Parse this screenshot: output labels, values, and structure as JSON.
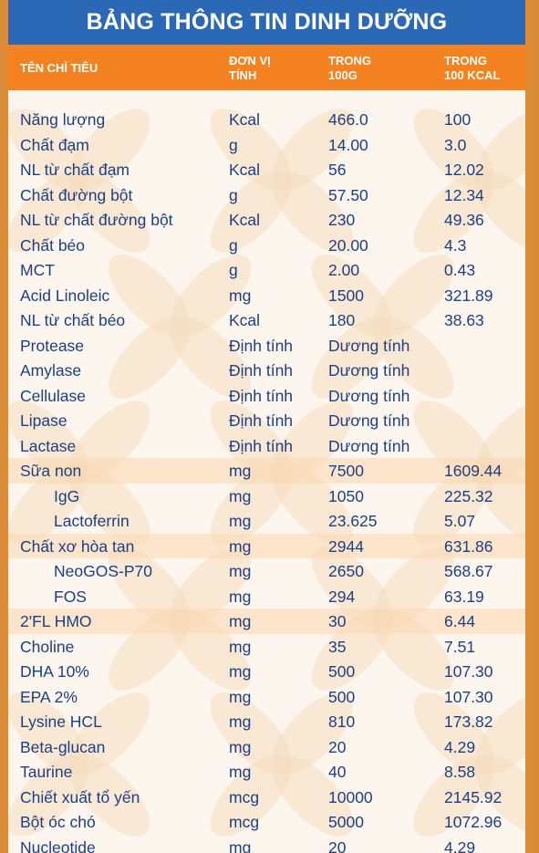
{
  "title": "BẢNG THÔNG TIN DINH DƯỠNG",
  "header": {
    "col1": "TÊN CHỈ TIÊU",
    "col2_l1": "ĐƠN VỊ",
    "col2_l2": "TÍNH",
    "col3_l1": "TRONG",
    "col3_l2": "100G",
    "col4_l1": "TRONG",
    "col4_l2": "100 KCAL"
  },
  "colors": {
    "title_bg": "#2b69b6",
    "header_bg": "#f58220",
    "text": "#1c3f86",
    "band": "#fbd7af"
  },
  "rows": [
    {
      "name": "Năng lượng",
      "unit": "Kcal",
      "per100g": "466.0",
      "per100kcal": "100"
    },
    {
      "name": "Chất đạm",
      "unit": "g",
      "per100g": "14.00",
      "per100kcal": "3.0"
    },
    {
      "name": "NL từ chất đạm",
      "unit": "Kcal",
      "per100g": "56",
      "per100kcal": "12.02"
    },
    {
      "name": "Chất đường bột",
      "unit": "g",
      "per100g": "57.50",
      "per100kcal": "12.34"
    },
    {
      "name": "NL từ chất đường bột",
      "unit": "Kcal",
      "per100g": "230",
      "per100kcal": "49.36"
    },
    {
      "name": "Chất béo",
      "unit": "g",
      "per100g": "20.00",
      "per100kcal": "4.3"
    },
    {
      "name": "MCT",
      "unit": "g",
      "per100g": "2.00",
      "per100kcal": "0.43"
    },
    {
      "name": "Acid  Linoleic",
      "unit": "mg",
      "per100g": "1500",
      "per100kcal": "321.89"
    },
    {
      "name": "NL từ chất béo",
      "unit": "Kcal",
      "per100g": "180",
      "per100kcal": "38.63"
    },
    {
      "name": "Protease",
      "unit": "Định tính",
      "per100g": "Dương tính",
      "per100kcal": ""
    },
    {
      "name": "Amylase",
      "unit": "Định tính",
      "per100g": "Dương tính",
      "per100kcal": ""
    },
    {
      "name": "Cellulase",
      "unit": "Định tính",
      "per100g": "Dương tính",
      "per100kcal": ""
    },
    {
      "name": "Lipase",
      "unit": "Định tính",
      "per100g": "Dương tính",
      "per100kcal": ""
    },
    {
      "name": "Lactase",
      "unit": "Định tính",
      "per100g": "Dương tính",
      "per100kcal": ""
    },
    {
      "name": "Sữa non",
      "unit": "mg",
      "per100g": "7500",
      "per100kcal": "1609.44"
    },
    {
      "name": "IgG",
      "unit": "mg",
      "per100g": "1050",
      "per100kcal": "225.32",
      "indent": true
    },
    {
      "name": "Lactoferrin",
      "unit": "mg",
      "per100g": "23.625",
      "per100kcal": "5.07",
      "indent": true
    },
    {
      "name": "Chất xơ hòa tan",
      "unit": "mg",
      "per100g": "2944",
      "per100kcal": "631.86"
    },
    {
      "name": "NeoGOS-P70",
      "unit": "mg",
      "per100g": "2650",
      "per100kcal": "568.67",
      "indent": true
    },
    {
      "name": "FOS",
      "unit": "mg",
      "per100g": "294",
      "per100kcal": "63.19",
      "indent": true
    },
    {
      "name": "2'FL HMO",
      "unit": "mg",
      "per100g": "30",
      "per100kcal": "6.44"
    },
    {
      "name": "Choline",
      "unit": "mg",
      "per100g": "35",
      "per100kcal": "7.51"
    },
    {
      "name": "DHA 10%",
      "unit": "mg",
      "per100g": "500",
      "per100kcal": "107.30"
    },
    {
      "name": "EPA 2%",
      "unit": "mg",
      "per100g": "500",
      "per100kcal": "107.30"
    },
    {
      "name": "Lysine HCL",
      "unit": "mg",
      "per100g": "810",
      "per100kcal": "173.82"
    },
    {
      "name": "Beta-glucan",
      "unit": "mg",
      "per100g": "20",
      "per100kcal": "4.29"
    },
    {
      "name": "Taurine",
      "unit": "mg",
      "per100g": "40",
      "per100kcal": "8.58"
    },
    {
      "name": "Chiết xuất tổ yến",
      "unit": "mcg",
      "per100g": "10000",
      "per100kcal": "2145.92"
    },
    {
      "name": "Bột óc chó",
      "unit": "mcg",
      "per100g": "5000",
      "per100kcal": "1072.96"
    },
    {
      "name": "Nucleotide",
      "unit": "mg",
      "per100g": "20",
      "per100kcal": "4.29"
    }
  ]
}
